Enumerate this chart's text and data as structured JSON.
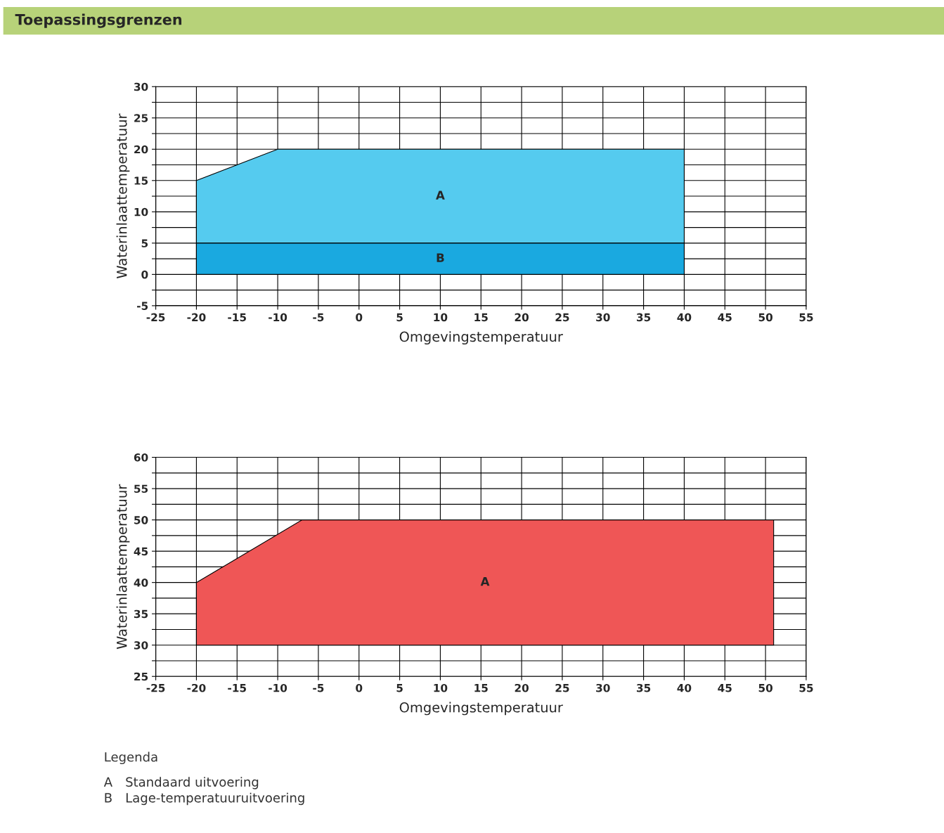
{
  "chart_data": [
    {
      "type": "area",
      "title": "Toepassingsgrenzen",
      "xlabel": "Omgevingstemperatuur",
      "ylabel": "Waterinlaattemperatuur",
      "series": [
        {
          "x": [
            -20,
            -10,
            40,
            40,
            -20,
            -20
          ],
          "values": [
            15,
            20,
            20,
            5,
            5,
            15
          ],
          "color": "#55cbef"
        },
        {
          "x": [
            -20,
            40,
            40,
            -20,
            -20
          ],
          "values": [
            5,
            5,
            0,
            0,
            5
          ],
          "color": "#1aa9e0"
        }
      ],
      "annotations": [
        "A",
        "B"
      ],
      "xlim": [
        -25,
        55
      ],
      "xticks": [
        -25,
        -20,
        -15,
        -10,
        -5,
        0,
        5,
        10,
        15,
        20,
        25,
        30,
        35,
        40,
        45,
        50,
        55
      ],
      "ylim": [
        -5,
        30
      ],
      "yticks": [
        -5,
        {
          "value": -2.5,
          "label": null
        },
        0,
        {
          "value": 2.5,
          "label": null
        },
        5,
        {
          "value": 7.5,
          "label": null
        },
        10,
        {
          "value": 12.5,
          "label": null
        },
        15,
        {
          "value": 17.5,
          "label": null
        },
        20,
        {
          "value": 22.5,
          "label": null
        },
        25,
        {
          "value": 27.5,
          "label": null
        },
        30
      ],
      "grid": true
    },
    {
      "type": "area",
      "xlabel": "Omgevingstemperatuur",
      "ylabel": "Waterinlaattemperatuur",
      "series": [
        {
          "x": [
            -20,
            -7,
            51,
            51,
            -20,
            -20
          ],
          "values": [
            40,
            50,
            50,
            30,
            30,
            40
          ],
          "color": "#ef5656"
        }
      ],
      "annotations": [
        "A",
        "Legenda",
        "A Standaard uitvoering",
        "B Lage-temperatuuruitvoering"
      ],
      "xlim": [
        -25,
        55
      ],
      "xticks": [
        -25,
        -20,
        -15,
        -10,
        -5,
        0,
        5,
        10,
        15,
        20,
        25,
        30,
        35,
        40,
        45,
        50,
        55
      ],
      "ylim": [
        25,
        60
      ],
      "yticks": [
        25,
        {
          "value": 27.5,
          "label": null
        },
        30,
        {
          "value": 32.5,
          "label": null
        },
        35,
        {
          "value": 37.5,
          "label": null
        },
        40,
        {
          "value": 42.5,
          "label": null
        },
        45,
        {
          "value": 47.5,
          "label": null
        },
        50,
        {
          "value": 52.5,
          "label": null
        },
        55,
        {
          "value": 57.5,
          "label": null
        },
        60
      ],
      "grid": true
    }
  ]
}
